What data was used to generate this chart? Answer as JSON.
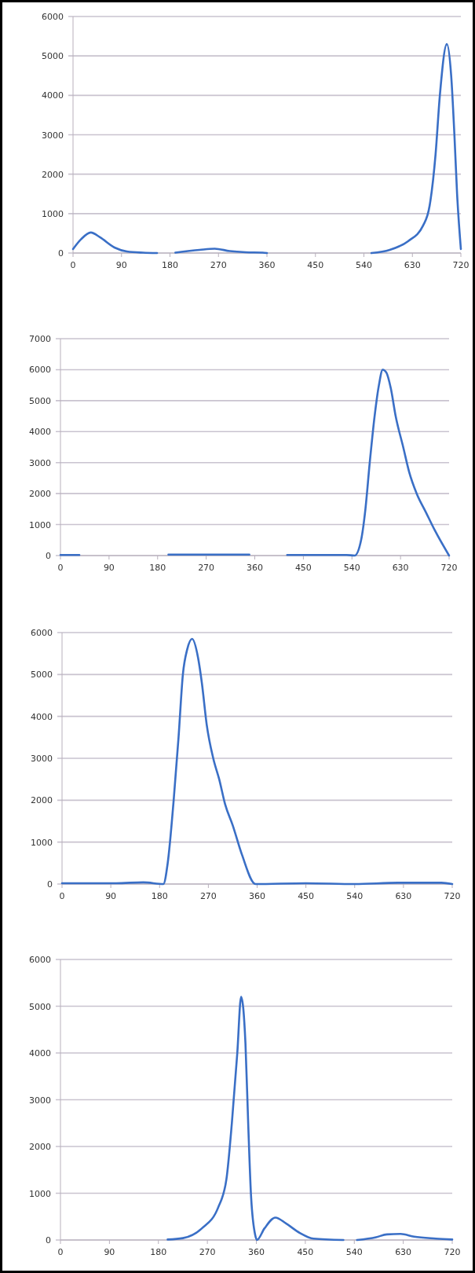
{
  "chart_data": [
    {
      "type": "line",
      "xlim": [
        0,
        720
      ],
      "xticks": [
        0,
        90,
        180,
        270,
        360,
        450,
        540,
        630,
        720
      ],
      "ylim": [
        0,
        6000
      ],
      "yticks": [
        0,
        1000,
        2000,
        3000,
        4000,
        5000,
        6000
      ],
      "grid": "y",
      "color": "#3a6fc6",
      "x": [
        0,
        15,
        33,
        50,
        77,
        100,
        130,
        156,
        170,
        190,
        235,
        263,
        291,
        320,
        352,
        360,
        540,
        554,
        588,
        622,
        650,
        662,
        673,
        681,
        694,
        702,
        708,
        713,
        720
      ],
      "values": [
        100,
        350,
        520,
        400,
        140,
        40,
        10,
        0,
        null,
        10,
        80,
        110,
        50,
        20,
        10,
        0,
        null,
        0,
        80,
        300,
        700,
        1200,
        2500,
        4000,
        5300,
        4500,
        3000,
        1500,
        100
      ]
    },
    {
      "type": "line",
      "xlim": [
        0,
        720
      ],
      "xticks": [
        0,
        90,
        180,
        270,
        360,
        450,
        540,
        630,
        720
      ],
      "ylim": [
        0,
        7000
      ],
      "yticks": [
        0,
        1000,
        2000,
        3000,
        4000,
        5000,
        6000,
        7000
      ],
      "grid": "y",
      "color": "#3a6fc6",
      "x": [
        0,
        35,
        100,
        200,
        350,
        400,
        420,
        530,
        545,
        557,
        565,
        573,
        582,
        590,
        597,
        604,
        612,
        621,
        635,
        646,
        660,
        677,
        694,
        720
      ],
      "values": [
        20,
        20,
        null,
        30,
        30,
        null,
        20,
        20,
        0,
        500,
        1500,
        3000,
        4500,
        5500,
        6000,
        5900,
        5400,
        4500,
        3500,
        2700,
        2000,
        1400,
        800,
        0
      ]
    },
    {
      "type": "line",
      "xlim": [
        0,
        720
      ],
      "xticks": [
        0,
        90,
        180,
        270,
        360,
        450,
        540,
        630,
        720
      ],
      "ylim": [
        0,
        6000
      ],
      "yticks": [
        0,
        1000,
        2000,
        3000,
        4000,
        5000,
        6000
      ],
      "grid": "y",
      "color": "#3a6fc6",
      "x": [
        0,
        100,
        150,
        187,
        195,
        206,
        215,
        223,
        231,
        240,
        251,
        258,
        267,
        279,
        290,
        301,
        315,
        332,
        357,
        450,
        540,
        620,
        700,
        720
      ],
      "values": [
        20,
        20,
        40,
        0,
        500,
        2000,
        3500,
        5000,
        5600,
        5850,
        5400,
        4800,
        3800,
        3000,
        2500,
        1900,
        1400,
        700,
        0,
        20,
        0,
        30,
        30,
        0
      ]
    },
    {
      "type": "line",
      "xlim": [
        0,
        720
      ],
      "xticks": [
        0,
        90,
        180,
        270,
        360,
        450,
        540,
        630,
        720
      ],
      "ylim": [
        0,
        6000
      ],
      "yticks": [
        0,
        1000,
        2000,
        3000,
        4000,
        5000,
        6000
      ],
      "grid": "y",
      "color": "#3a6fc6",
      "x": [
        197,
        225,
        260,
        290,
        305,
        315,
        325,
        332,
        340,
        345,
        350,
        358,
        361,
        375,
        395,
        415,
        440,
        465,
        520,
        530,
        545,
        580,
        600,
        625,
        650,
        690,
        720
      ],
      "values": [
        10,
        40,
        250,
        700,
        1300,
        2500,
        4000,
        5200,
        4200,
        2500,
        1000,
        100,
        0,
        250,
        480,
        350,
        150,
        30,
        0,
        null,
        0,
        60,
        120,
        130,
        70,
        30,
        10
      ]
    }
  ]
}
